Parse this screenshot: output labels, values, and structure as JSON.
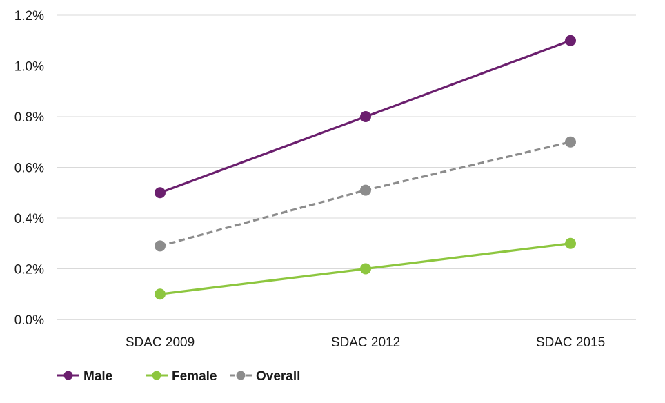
{
  "chart_data": {
    "type": "line",
    "categories": [
      "SDAC 2009",
      "SDAC 2012",
      "SDAC 2015"
    ],
    "series": [
      {
        "name": "Male",
        "values": [
          0.5,
          0.8,
          1.1
        ],
        "color": "#6b1f6e",
        "dashed": false
      },
      {
        "name": "Female",
        "values": [
          0.1,
          0.2,
          0.3
        ],
        "color": "#8dc63f",
        "dashed": false
      },
      {
        "name": "Overall",
        "values": [
          0.29,
          0.51,
          0.7
        ],
        "color": "#8c8c8c",
        "dashed": true
      }
    ],
    "yticks": [
      "0.0%",
      "0.2%",
      "0.4%",
      "0.6%",
      "0.8%",
      "1.0%",
      "1.2%"
    ],
    "ylim": [
      0,
      1.2
    ],
    "ytick_step": 0.2,
    "grid": true,
    "legend_position": "bottom-left",
    "title": "",
    "xlabel": "",
    "ylabel": ""
  }
}
